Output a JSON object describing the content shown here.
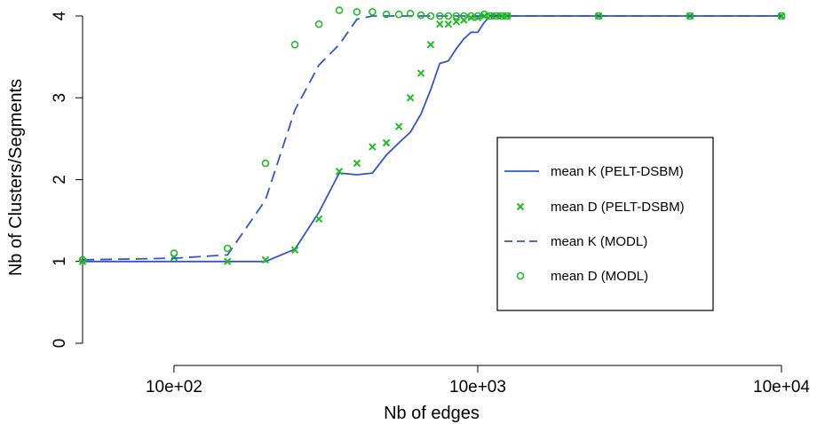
{
  "chart_data": {
    "type": "line",
    "title": "",
    "xlabel": "Nb of edges",
    "ylabel": "Nb of Clusters/Segments",
    "x_scale": "log10",
    "xlim": [
      50,
      10000
    ],
    "ylim": [
      0,
      4
    ],
    "x_ticks": [
      {
        "value": 100,
        "label": "10e+02"
      },
      {
        "value": 1000,
        "label": "10e+03"
      },
      {
        "value": 10000,
        "label": "10e+04"
      }
    ],
    "y_ticks": [
      {
        "value": 0,
        "label": "0"
      },
      {
        "value": 1,
        "label": "1"
      },
      {
        "value": 2,
        "label": "2"
      },
      {
        "value": 3,
        "label": "3"
      },
      {
        "value": 4,
        "label": "4"
      }
    ],
    "grid": false,
    "legend_position": "right",
    "colors": {
      "pelt": "#3355CC",
      "modl": "#22BB22"
    },
    "series": [
      {
        "name": "mean K (PELT-DSBM)",
        "kind": "line",
        "style": "solid",
        "x": [
          50,
          100,
          150,
          200,
          250,
          300,
          350,
          400,
          450,
          500,
          550,
          600,
          650,
          700,
          750,
          800,
          850,
          900,
          950,
          1000,
          1050,
          1100,
          1150,
          1200,
          1250,
          2500,
          5000,
          10000
        ],
        "y": [
          1.0,
          1.0,
          1.0,
          1.0,
          1.15,
          1.6,
          2.08,
          2.06,
          2.08,
          2.3,
          2.45,
          2.58,
          2.8,
          3.1,
          3.42,
          3.45,
          3.6,
          3.72,
          3.8,
          3.8,
          3.92,
          4.0,
          4.0,
          4.0,
          4.0,
          4.0,
          4.0,
          4.0
        ]
      },
      {
        "name": "mean D (PELT-DSBM)",
        "kind": "points",
        "marker": "x",
        "x": [
          50,
          100,
          150,
          200,
          250,
          300,
          350,
          400,
          450,
          500,
          550,
          600,
          650,
          700,
          750,
          800,
          850,
          900,
          950,
          1000,
          1050,
          1100,
          1150,
          1200,
          1250,
          2500,
          5000,
          10000
        ],
        "y": [
          1.0,
          1.05,
          1.0,
          1.02,
          1.14,
          1.52,
          2.1,
          2.2,
          2.4,
          2.45,
          2.65,
          3.0,
          3.3,
          3.65,
          3.9,
          3.9,
          3.93,
          3.95,
          3.98,
          3.98,
          4.0,
          4.0,
          4.0,
          4.0,
          4.0,
          4.0,
          4.0,
          4.0
        ]
      },
      {
        "name": "mean K (MODL)",
        "kind": "line",
        "style": "dashed",
        "x": [
          50,
          100,
          150,
          200,
          250,
          300,
          350,
          400,
          450,
          500,
          550,
          600,
          650,
          700,
          750,
          800,
          850,
          900,
          950,
          1000,
          1050,
          1100,
          1150,
          1200,
          1250,
          2500,
          5000,
          10000
        ],
        "y": [
          1.02,
          1.04,
          1.08,
          1.75,
          2.85,
          3.4,
          3.65,
          3.96,
          4.0,
          4.0,
          4.0,
          4.0,
          4.0,
          4.0,
          4.0,
          4.0,
          4.0,
          4.0,
          4.0,
          4.0,
          4.0,
          4.0,
          4.0,
          4.0,
          4.0,
          4.0,
          4.0,
          4.0
        ]
      },
      {
        "name": "mean D (MODL)",
        "kind": "points",
        "marker": "o",
        "x": [
          50,
          100,
          150,
          200,
          250,
          300,
          350,
          400,
          450,
          500,
          550,
          600,
          650,
          700,
          750,
          800,
          850,
          900,
          950,
          1000,
          1050,
          1100,
          1150,
          1200,
          1250,
          2500,
          5000,
          10000
        ],
        "y": [
          1.02,
          1.1,
          1.16,
          2.2,
          3.65,
          3.9,
          4.07,
          4.05,
          4.05,
          4.02,
          4.02,
          4.03,
          4.01,
          4.0,
          4.0,
          4.0,
          4.0,
          4.0,
          4.0,
          4.0,
          4.02,
          4.0,
          4.0,
          4.0,
          4.0,
          4.0,
          4.0,
          4.0
        ]
      }
    ]
  }
}
